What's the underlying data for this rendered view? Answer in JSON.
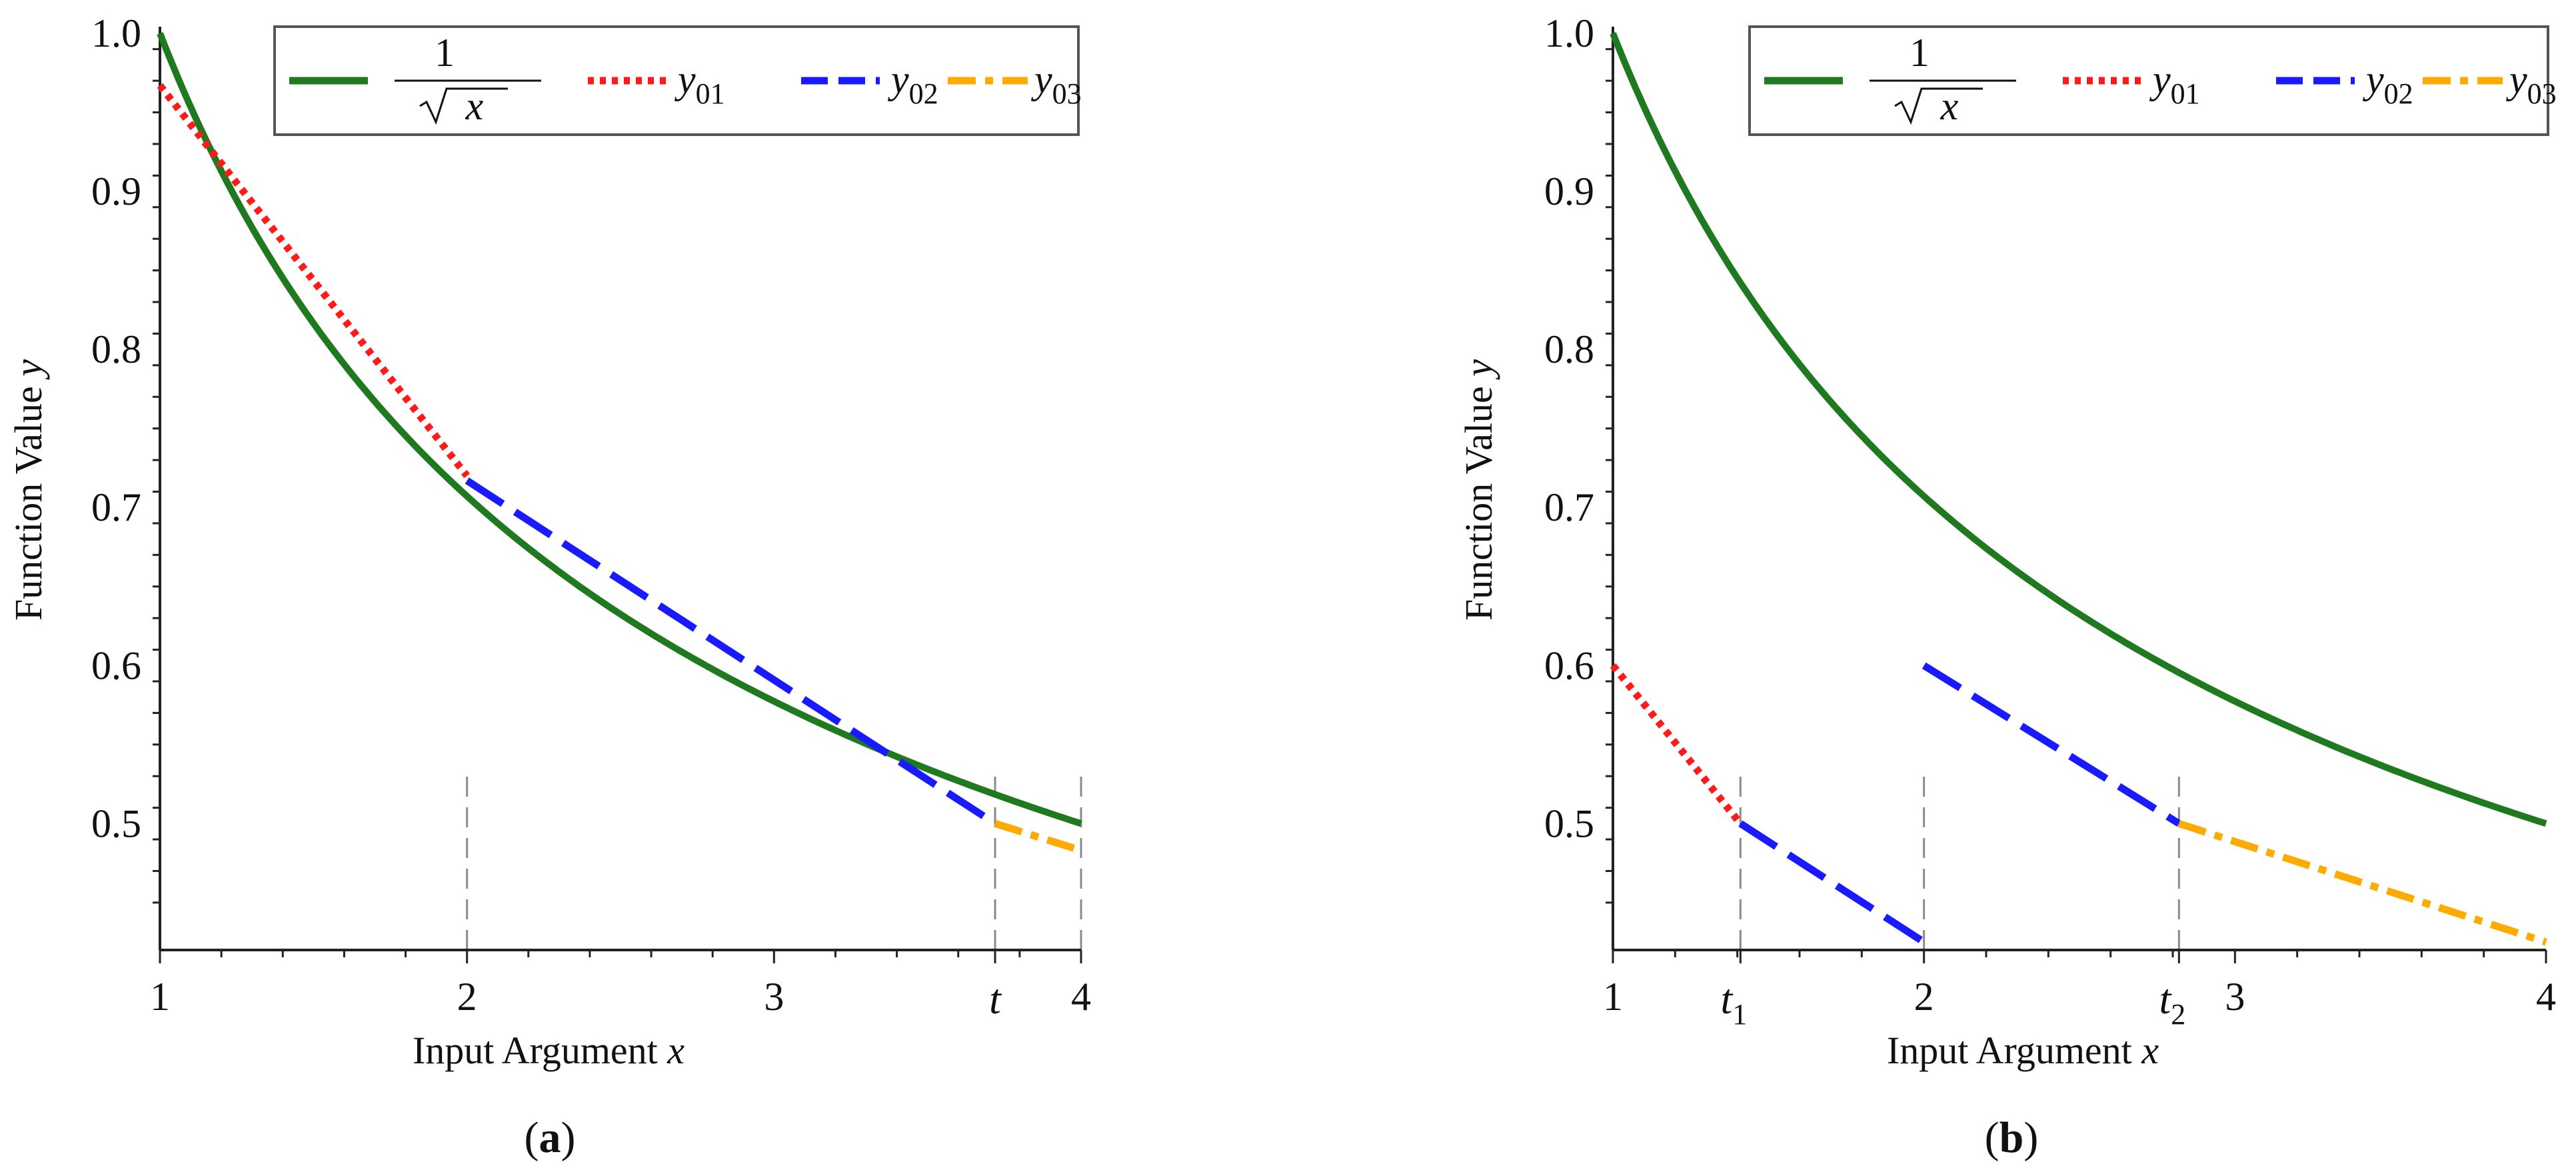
{
  "chart_data": [
    {
      "type": "line",
      "panel": "a",
      "caption": "(a)",
      "caption_letter": "a",
      "xlabel": "Input Argument ",
      "xlabel_var": "x",
      "ylabel": "Function Value ",
      "ylabel_var": "y",
      "xlim": [
        1,
        4
      ],
      "ylim": [
        0.42,
        1.0
      ],
      "xticks": [
        1,
        2,
        3,
        4
      ],
      "yticks": [
        0.5,
        0.6,
        0.7,
        0.8,
        0.9,
        1.0
      ],
      "ytick_labels": [
        "0.5",
        "0.6",
        "0.7",
        "0.8",
        "0.9",
        "1.0"
      ],
      "special_ticks": [
        {
          "label": "t",
          "sub": "",
          "x": 3.72
        }
      ],
      "vlines": [
        2,
        3.72,
        4
      ],
      "legend": {
        "position": "top-right",
        "entries": [
          {
            "label_num": "1",
            "label_rad": "x",
            "label": "1/√x",
            "color": "#1f7a1f",
            "style": "solid"
          },
          {
            "label": "y",
            "sub": "01",
            "color": "#ff1a1a",
            "style": "dotted"
          },
          {
            "label": "y",
            "sub": "02",
            "color": "#1a1aff",
            "style": "dashed"
          },
          {
            "label": "y",
            "sub": "03",
            "color": "#ffaa00",
            "style": "dashdot"
          }
        ]
      },
      "series": [
        {
          "name": "1/√x",
          "function": "1/sqrt(x)",
          "x_range": [
            1,
            4
          ],
          "color": "#1f7a1f",
          "style": "solid"
        },
        {
          "name": "y01",
          "x": [
            1.0,
            2.0
          ],
          "y": [
            0.967,
            0.72
          ],
          "color": "#ff1a1a",
          "style": "dotted"
        },
        {
          "name": "y02",
          "x": [
            2.0,
            3.72
          ],
          "y": [
            0.717,
            0.5
          ],
          "color": "#1a1aff",
          "style": "dashed"
        },
        {
          "name": "y03",
          "x": [
            3.72,
            4.0
          ],
          "y": [
            0.5,
            0.483
          ],
          "color": "#ffaa00",
          "style": "dashdot"
        }
      ]
    },
    {
      "type": "line",
      "panel": "b",
      "caption": "(b)",
      "caption_letter": "b",
      "xlabel": "Input Argument ",
      "xlabel_var": "x",
      "ylabel": "Function Value ",
      "ylabel_var": "y",
      "xlim": [
        1,
        4
      ],
      "ylim": [
        0.42,
        1.0
      ],
      "xticks": [
        1,
        2,
        3,
        4
      ],
      "yticks": [
        0.5,
        0.6,
        0.7,
        0.8,
        0.9,
        1.0
      ],
      "ytick_labels": [
        "0.5",
        "0.6",
        "0.7",
        "0.8",
        "0.9",
        "1.0"
      ],
      "special_ticks": [
        {
          "label": "t",
          "sub": "1",
          "x": 1.41
        },
        {
          "label": "t",
          "sub": "2",
          "x": 2.82
        }
      ],
      "vlines": [
        1.41,
        2,
        2.82
      ],
      "legend": {
        "position": "top-right",
        "entries": [
          {
            "label_num": "1",
            "label_rad": "x",
            "label": "1/√x",
            "color": "#1f7a1f",
            "style": "solid"
          },
          {
            "label": "y",
            "sub": "01",
            "color": "#ff1a1a",
            "style": "dotted"
          },
          {
            "label": "y",
            "sub": "02",
            "color": "#1a1aff",
            "style": "dashed"
          },
          {
            "label": "y",
            "sub": "03",
            "color": "#ffaa00",
            "style": "dashdot"
          }
        ]
      },
      "series": [
        {
          "name": "1/√x",
          "function": "1/sqrt(x)",
          "x_range": [
            1,
            4
          ],
          "color": "#1f7a1f",
          "style": "solid"
        },
        {
          "name": "y01",
          "x": [
            1.0,
            1.41
          ],
          "y": [
            0.6,
            0.5
          ],
          "color": "#ff1a1a",
          "style": "dotted"
        },
        {
          "name": "y02 (segment 1)",
          "x": [
            1.41,
            2.0
          ],
          "y": [
            0.5,
            0.425
          ],
          "color": "#1a1aff",
          "style": "dashed"
        },
        {
          "name": "y02 (segment 2)",
          "x": [
            2.0,
            2.82
          ],
          "y": [
            0.6,
            0.5
          ],
          "color": "#1a1aff",
          "style": "dashed"
        },
        {
          "name": "y03",
          "x": [
            2.82,
            4.0
          ],
          "y": [
            0.5,
            0.425
          ],
          "color": "#ffaa00",
          "style": "dashdot"
        }
      ]
    }
  ]
}
